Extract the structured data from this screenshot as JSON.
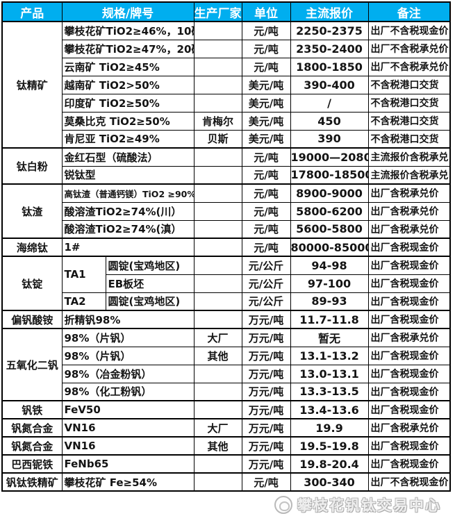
{
  "colors": {
    "header_bg": "#00AEEF",
    "header_text": "#FFFFFF",
    "border": "#000000"
  },
  "table": {
    "columns": {
      "product": "产品",
      "spec": "规格/牌号",
      "producer": "生产厂家",
      "unit": "单位",
      "price": "主流报价",
      "note": "备注"
    },
    "rows": [
      {
        "product": "钛精矿",
        "spec": "攀枝花矿TiO2≥46%，10矿",
        "producer": "",
        "unit": "元/吨",
        "price": "2250-2375",
        "note": "出厂不含税现金价"
      },
      {
        "spec": "攀枝花矿TiO2≥47%，20矿",
        "producer": "",
        "unit": "元/吨",
        "price": "2350-2400",
        "note": "出厂不含税承兑价"
      },
      {
        "spec": "云南矿 TiO2≥45%",
        "producer": "",
        "unit": "元/吨",
        "price": "1800-1850",
        "note": "出厂不含税承兑价"
      },
      {
        "spec": "越南矿 TiO2>50%",
        "producer": "",
        "unit": "美元/吨",
        "price": "390-400",
        "note": "不含税港口交货"
      },
      {
        "spec": "印度矿 TiO2≥50%",
        "producer": "",
        "unit": "美元/吨",
        "price": "/",
        "note": "不含税港口交货"
      },
      {
        "spec": "莫桑比克 TiO2≥50%",
        "producer": "肯梅尔",
        "unit": "美元/吨",
        "price": "450",
        "note": "不含税港口交货"
      },
      {
        "spec": "肯尼亚 TiO2≥49%",
        "producer": "贝斯",
        "unit": "美元/吨",
        "price": "390",
        "note": "不含税港口交货"
      },
      {
        "product": "钛白粉",
        "spec": "金红石型（硫酸法）",
        "producer": "",
        "unit": "元/吨",
        "price": "19000—20800",
        "note": "主流报价含税承兑"
      },
      {
        "spec": "锐钛型",
        "producer": "",
        "unit": "元/吨",
        "price": "17800-18500",
        "note": "主流报价含税承兑"
      },
      {
        "product": "钛渣",
        "spec": "高钛渣（普通钙镁）TiO2 ≥90%",
        "producer": "",
        "unit": "元/吨",
        "price": "8900-9000",
        "note": "出厂含税承兑价"
      },
      {
        "spec": "酸溶渣TiO2≥74%(川）",
        "producer": "",
        "unit": "元/吨",
        "price": "5800-6200",
        "note": "出厂含税承兑价"
      },
      {
        "spec": "酸溶渣TiO2≥74%(滇）",
        "producer": "",
        "unit": "元/吨",
        "price": "5600-5800",
        "note": "出厂含税承兑价"
      },
      {
        "product": "海绵钛",
        "spec": "1#",
        "producer": "",
        "unit": "元/吨",
        "price": "80000-85000",
        "note": "出厂含税现金价"
      },
      {
        "product": "钛锭",
        "spec_a": "TA1",
        "spec_b": "圆锭(宝鸡地区)",
        "producer": "",
        "unit": "元/公斤",
        "price": "94-98",
        "note": "出厂含税现金价"
      },
      {
        "spec_b": "EB板坯",
        "producer": "",
        "unit": "元/公斤",
        "price": "97-100",
        "note": "出厂含税现金价"
      },
      {
        "spec_a": "TA2",
        "spec_b": "圆锭(宝鸡地区)",
        "producer": "",
        "unit": "元/公斤",
        "price": "89-93",
        "note": "出厂含税现金价"
      },
      {
        "product": "偏钒酸铵",
        "spec": "折精钒98%",
        "producer": "",
        "unit": "万元/吨",
        "price": "11.7-11.8",
        "note": "出厂含税现金价"
      },
      {
        "product": "五氧化二钒",
        "spec": "98%（片钒）",
        "producer": "大厂",
        "unit": "万元/吨",
        "price": "暂无",
        "note": "出厂含税承兑价"
      },
      {
        "spec": "98%（片钒）",
        "producer": "其他",
        "unit": "万元/吨",
        "price": "13.1-13.2",
        "note": "出厂含税现金价"
      },
      {
        "spec": "98%（冶金粉钒）",
        "producer": "",
        "unit": "万元/吨",
        "price": "13.0-13.1",
        "note": "出厂含税现金价"
      },
      {
        "spec": "98%（化工粉钒）",
        "producer": "",
        "unit": "万元/吨",
        "price": "13.3-13.5",
        "note": "出厂含税现金价"
      },
      {
        "product": "钒铁",
        "spec": "FeV50",
        "producer": "",
        "unit": "万元/吨",
        "price": "13.4-13.6",
        "note": "出厂含税现金价"
      },
      {
        "product": "钒氮合金",
        "spec": "VN16",
        "producer": "大厂",
        "unit": "万元/吨",
        "price": "19.9",
        "note": "出厂含税承兑价"
      },
      {
        "product": "钒氮合金",
        "spec": "VN16",
        "producer": "其他",
        "unit": "万元/吨",
        "price": "19.5-19.8",
        "note": "出厂含税现金价"
      },
      {
        "product": "巴西铌铁",
        "spec": "FeNb65",
        "producer": "",
        "unit": "万元/吨",
        "price": "19.8-20.4",
        "note": "出厂含税现金价"
      },
      {
        "product": "钒钛铁精矿",
        "spec": "攀枝花矿 Fe≥54%",
        "producer": "",
        "unit": "元/吨",
        "price": "300-340",
        "note": "出厂不含税现金价"
      }
    ]
  },
  "watermark": {
    "text": "攀枝花钒钛交易中心"
  }
}
